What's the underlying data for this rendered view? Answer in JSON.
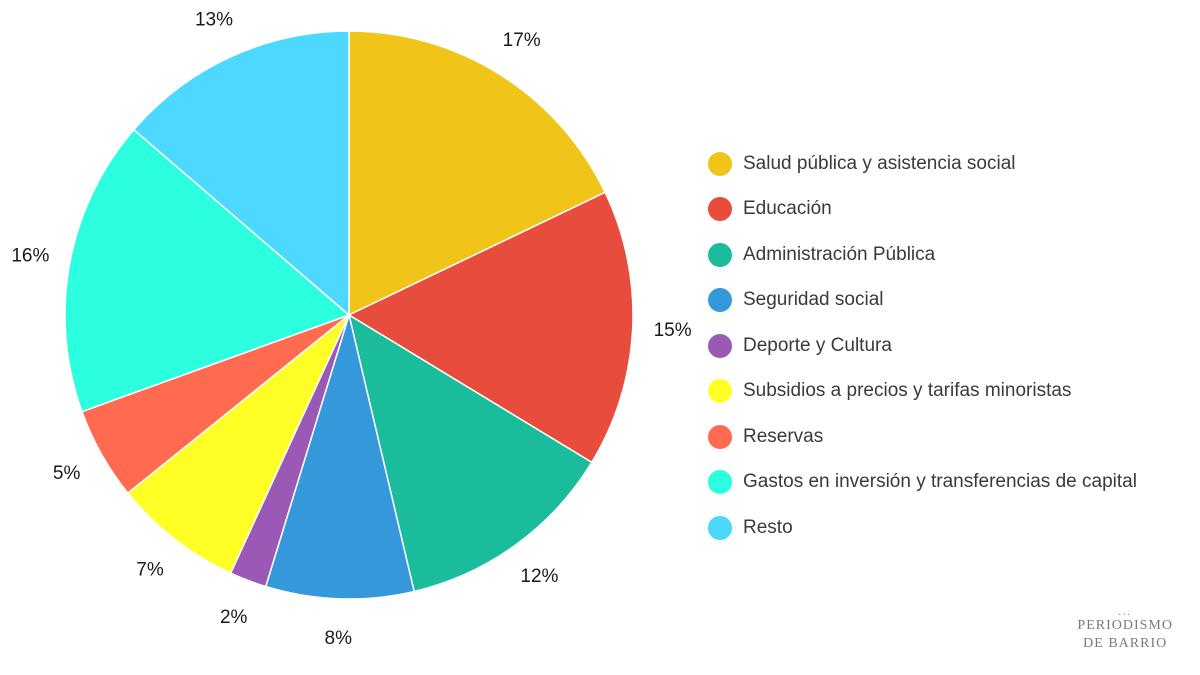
{
  "chart_data": {
    "type": "pie",
    "title": "",
    "categories": [
      "Salud pública y asistencia social",
      "Educación",
      "Administración Pública",
      "Seguridad social",
      "Deporte y Cultura",
      "Subsidios a precios y tarifas minoristas",
      "Reservas",
      "Gastos en inversión y transferencias de capital",
      "Resto"
    ],
    "values": [
      17,
      15,
      12,
      8,
      2,
      7,
      5,
      16,
      13
    ],
    "labels": [
      "17%",
      "15%",
      "12%",
      "8%",
      "2%",
      "7%",
      "5%",
      "16%",
      "13%"
    ],
    "colors": [
      "#f1c419",
      "#e84c3d",
      "#1abc9c",
      "#3598db",
      "#9b59b6",
      "#ffff26",
      "#ff6a51",
      "#2bffdf",
      "#4cd8ff"
    ],
    "start_angle_deg": 0,
    "direction": "clockwise",
    "legend_position": "right"
  },
  "branding": {
    "dots": "...",
    "line1": "PERIODISMO",
    "line2": "DE BARRIO"
  }
}
